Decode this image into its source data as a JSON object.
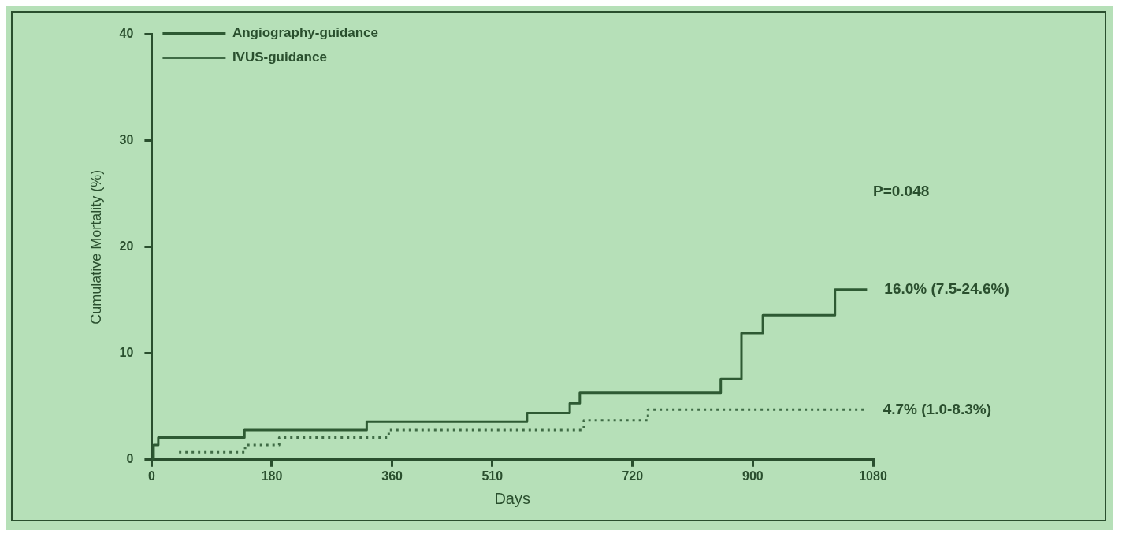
{
  "chart_data": {
    "type": "step",
    "xlabel": "Days",
    "ylabel": "Cumulative Mortality (%)",
    "xlim": [
      0,
      1080
    ],
    "ylim": [
      0,
      40
    ],
    "xticks": [
      0,
      180,
      360,
      510,
      720,
      900,
      1080
    ],
    "yticks": [
      0,
      10,
      20,
      30,
      40
    ],
    "grid": false,
    "legend": "top left",
    "marker": "none",
    "series": [
      {
        "name": "Angiography-guidance",
        "color": "#2e5a33",
        "line_style": "solid",
        "x": [
          0,
          3,
          10,
          139,
          322,
          562,
          626,
          641,
          852,
          883,
          915,
          1023,
          1071
        ],
        "values": [
          0,
          1.4,
          2.1,
          2.8,
          3.6,
          4.4,
          5.3,
          6.3,
          7.6,
          11.9,
          13.6,
          16.0,
          16.0
        ]
      },
      {
        "name": "IVUS-guidance",
        "color": "#3f6b45",
        "line_style": "dotted",
        "x": [
          41,
          140,
          191,
          355,
          647,
          743,
          1069
        ],
        "values": [
          0.7,
          1.4,
          2.1,
          2.8,
          3.7,
          4.7,
          4.7
        ]
      }
    ],
    "annotations": [
      "P=0.048",
      "16.0% (7.5-24.6%)",
      "4.7% (1.0-8.3%)"
    ]
  }
}
